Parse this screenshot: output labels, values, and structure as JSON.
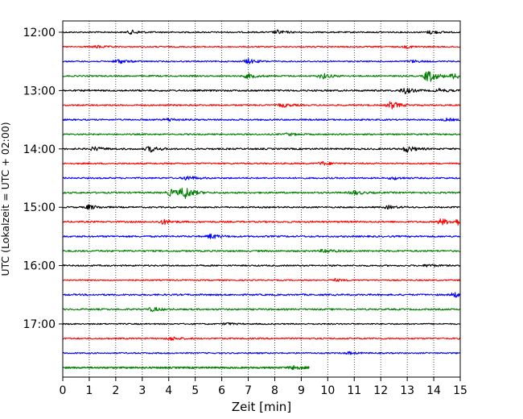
{
  "chart_data": {
    "type": "line",
    "title": "",
    "xlabel": "Zeit  [min]",
    "ylabel": "UTC (Lokalzeit = UTC + 02:00)",
    "xlim": [
      0,
      15
    ],
    "x_ticks": [
      "0",
      "1",
      "2",
      "3",
      "4",
      "5",
      "6",
      "7",
      "8",
      "9",
      "10",
      "11",
      "12",
      "13",
      "14",
      "15"
    ],
    "y_tick_labels": [
      "12:00",
      "13:00",
      "14:00",
      "15:00",
      "16:00",
      "17:00"
    ],
    "grid": "vertical dotted",
    "trace_interval_min": 15,
    "start_time": "12:00",
    "trace_colors": [
      "#000000",
      "#ff0000",
      "#0000ff",
      "#008000"
    ],
    "last_trace_end_min": 9.3,
    "traces": [
      {
        "start": "12:00",
        "color": "#000000",
        "noise": 0.35,
        "events": [
          {
            "t": 2.6,
            "amp": 1.0
          },
          {
            "t": 8.1,
            "amp": 1.0
          },
          {
            "t": 13.9,
            "amp": 0.9
          }
        ]
      },
      {
        "start": "12:15",
        "color": "#ff0000",
        "noise": 0.35,
        "events": [
          {
            "t": 1.3,
            "amp": 0.7
          },
          {
            "t": 13.0,
            "amp": 0.6
          }
        ]
      },
      {
        "start": "12:30",
        "color": "#0000ff",
        "noise": 0.35,
        "events": [
          {
            "t": 2.1,
            "amp": 1.2
          },
          {
            "t": 7.0,
            "amp": 1.3
          },
          {
            "t": 13.2,
            "amp": 0.6
          }
        ]
      },
      {
        "start": "12:45",
        "color": "#008000",
        "noise": 0.4,
        "events": [
          {
            "t": 7.0,
            "amp": 1.2
          },
          {
            "t": 9.8,
            "amp": 1.4
          },
          {
            "t": 13.8,
            "amp": 3.5
          },
          {
            "t": 14.8,
            "amp": 1.6
          }
        ]
      },
      {
        "start": "13:00",
        "color": "#000000",
        "noise": 0.45,
        "events": [
          {
            "t": 12.9,
            "amp": 1.5
          },
          {
            "t": 14.2,
            "amp": 0.8
          }
        ]
      },
      {
        "start": "13:15",
        "color": "#ff0000",
        "noise": 0.4,
        "events": [
          {
            "t": 8.3,
            "amp": 1.0
          },
          {
            "t": 12.4,
            "amp": 2.0
          }
        ]
      },
      {
        "start": "13:30",
        "color": "#0000ff",
        "noise": 0.4,
        "events": [
          {
            "t": 4.0,
            "amp": 0.8
          },
          {
            "t": 14.5,
            "amp": 0.6
          }
        ]
      },
      {
        "start": "13:45",
        "color": "#008000",
        "noise": 0.4,
        "events": [
          {
            "t": 8.5,
            "amp": 0.6
          }
        ]
      },
      {
        "start": "14:00",
        "color": "#000000",
        "noise": 0.45,
        "events": [
          {
            "t": 1.2,
            "amp": 1.0
          },
          {
            "t": 3.3,
            "amp": 1.5
          },
          {
            "t": 13.0,
            "amp": 1.6
          }
        ]
      },
      {
        "start": "14:15",
        "color": "#ff0000",
        "noise": 0.4,
        "events": [
          {
            "t": 9.8,
            "amp": 0.9
          }
        ]
      },
      {
        "start": "14:30",
        "color": "#0000ff",
        "noise": 0.4,
        "events": [
          {
            "t": 4.7,
            "amp": 1.2
          },
          {
            "t": 12.5,
            "amp": 0.7
          }
        ]
      },
      {
        "start": "14:45",
        "color": "#008000",
        "noise": 0.45,
        "events": [
          {
            "t": 4.1,
            "amp": 1.8
          },
          {
            "t": 4.6,
            "amp": 3.2
          },
          {
            "t": 11.0,
            "amp": 1.0
          }
        ]
      },
      {
        "start": "15:00",
        "color": "#000000",
        "noise": 0.4,
        "events": [
          {
            "t": 1.0,
            "amp": 1.2
          },
          {
            "t": 12.3,
            "amp": 0.8
          }
        ]
      },
      {
        "start": "15:15",
        "color": "#ff0000",
        "noise": 0.45,
        "events": [
          {
            "t": 3.8,
            "amp": 1.2
          },
          {
            "t": 14.3,
            "amp": 1.6
          },
          {
            "t": 14.9,
            "amp": 1.3
          }
        ]
      },
      {
        "start": "15:30",
        "color": "#0000ff",
        "noise": 0.45,
        "events": [
          {
            "t": 5.6,
            "amp": 1.2
          }
        ]
      },
      {
        "start": "15:45",
        "color": "#008000",
        "noise": 0.45,
        "events": [
          {
            "t": 9.9,
            "amp": 1.0
          }
        ]
      },
      {
        "start": "16:00",
        "color": "#000000",
        "noise": 0.4,
        "events": [
          {
            "t": 13.8,
            "amp": 0.7
          }
        ]
      },
      {
        "start": "16:15",
        "color": "#ff0000",
        "noise": 0.35,
        "events": [
          {
            "t": 10.3,
            "amp": 0.6
          }
        ]
      },
      {
        "start": "16:30",
        "color": "#0000ff",
        "noise": 0.45,
        "events": [
          {
            "t": 14.8,
            "amp": 1.2
          }
        ]
      },
      {
        "start": "16:45",
        "color": "#008000",
        "noise": 0.45,
        "events": [
          {
            "t": 3.4,
            "amp": 1.0
          }
        ]
      },
      {
        "start": "17:00",
        "color": "#000000",
        "noise": 0.35,
        "events": [
          {
            "t": 6.2,
            "amp": 0.6
          }
        ]
      },
      {
        "start": "17:15",
        "color": "#ff0000",
        "noise": 0.4,
        "events": [
          {
            "t": 4.1,
            "amp": 0.9
          }
        ]
      },
      {
        "start": "17:30",
        "color": "#0000ff",
        "noise": 0.35,
        "events": [
          {
            "t": 10.8,
            "amp": 0.6
          }
        ]
      },
      {
        "start": "17:45",
        "color": "#008000",
        "noise": 0.45,
        "events": [
          {
            "t": 8.7,
            "amp": 1.0
          }
        ]
      }
    ]
  }
}
